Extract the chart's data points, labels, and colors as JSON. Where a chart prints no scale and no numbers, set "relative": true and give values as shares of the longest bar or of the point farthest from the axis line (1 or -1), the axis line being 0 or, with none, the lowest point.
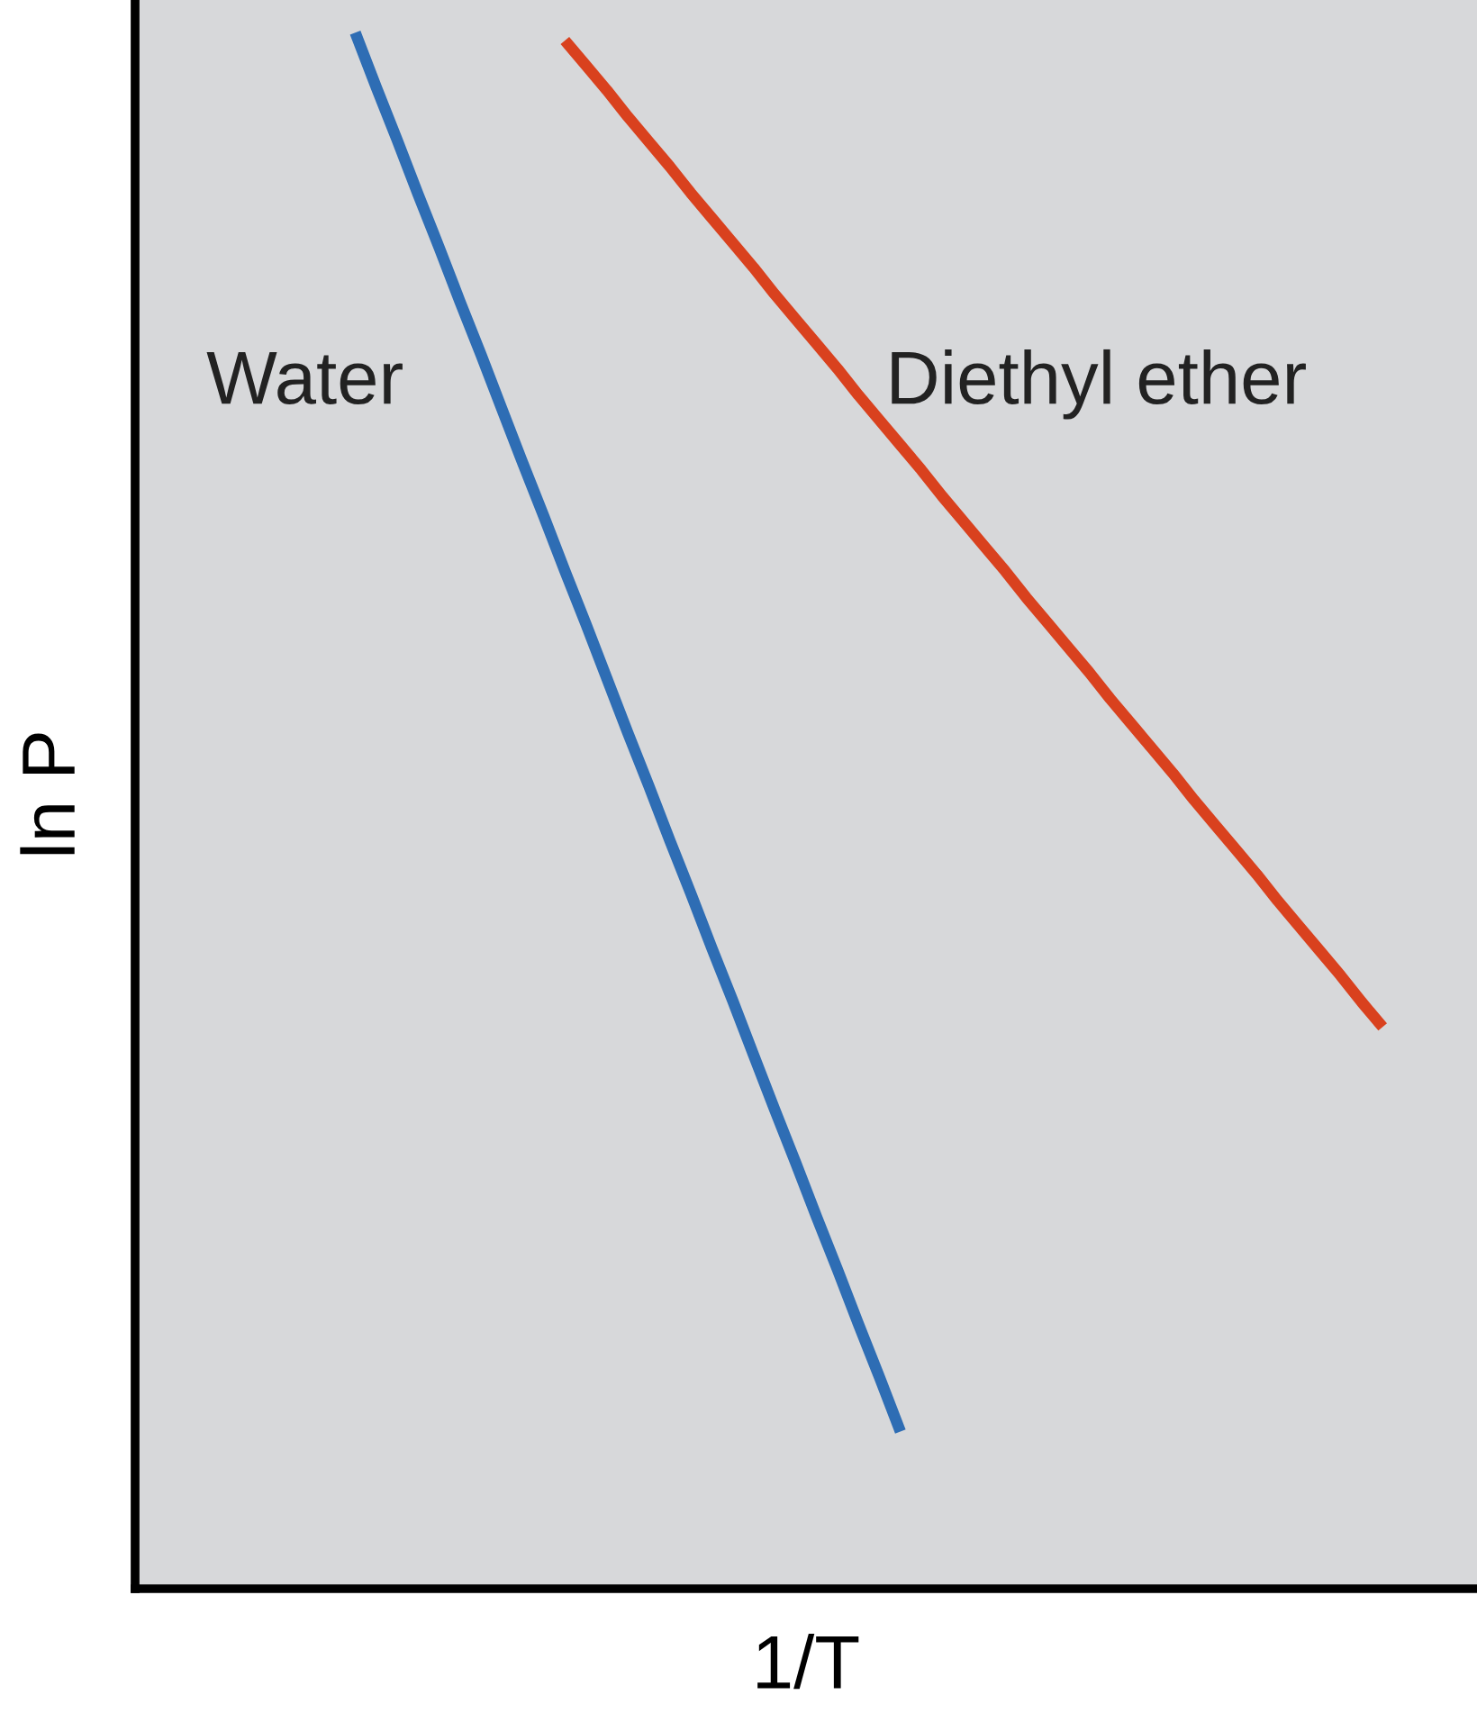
{
  "chart_data": {
    "type": "line",
    "relative": true,
    "xlabel": "1/T",
    "ylabel": "ln P",
    "legend": false,
    "marker": "none",
    "line_style": "solid",
    "categories": [
      null,
      null,
      null,
      null,
      null,
      null,
      null,
      null,
      null,
      null,
      null,
      null,
      null,
      null,
      null,
      null,
      null,
      null,
      null,
      null,
      null,
      null,
      null,
      null,
      null,
      null,
      null,
      null,
      null,
      null,
      null,
      null,
      null,
      null,
      null,
      null,
      null,
      null,
      null,
      null,
      null,
      null,
      null,
      null,
      null,
      null,
      null,
      null,
      null,
      null,
      null,
      null,
      null,
      null,
      null,
      null,
      null,
      null,
      null,
      null,
      null,
      null,
      null,
      null
    ],
    "series": [
      {
        "name": "Water",
        "color": "#2e6db4",
        "values": [
          null,
          null,
          null,
          null,
          null,
          null,
          null,
          null,
          null,
          null,
          1.0,
          0.965,
          0.931,
          0.896,
          0.862,
          0.827,
          0.793,
          0.758,
          0.723,
          0.689,
          0.654,
          0.62,
          0.585,
          0.55,
          0.516,
          0.481,
          0.447,
          0.412,
          0.378,
          0.343,
          0.308,
          0.274,
          0.239,
          0.205,
          0.17,
          0.136,
          0.101,
          null,
          null,
          null,
          null,
          null,
          null,
          null,
          null,
          null,
          null,
          null,
          null,
          null,
          null,
          null,
          null,
          null,
          null,
          null,
          null,
          null,
          null,
          null,
          null,
          null,
          null,
          null
        ]
      },
      {
        "name": "Diethyl ether",
        "color": "#d9411e",
        "values": [
          null,
          null,
          null,
          null,
          null,
          null,
          null,
          null,
          null,
          null,
          null,
          null,
          null,
          null,
          null,
          null,
          null,
          null,
          null,
          null,
          0.995,
          0.979,
          0.963,
          0.946,
          0.93,
          0.914,
          0.897,
          0.881,
          0.865,
          0.849,
          0.832,
          0.816,
          0.8,
          0.784,
          0.767,
          0.751,
          0.735,
          0.719,
          0.702,
          0.686,
          0.67,
          0.654,
          0.637,
          0.621,
          0.605,
          0.589,
          0.572,
          0.556,
          0.54,
          0.524,
          0.507,
          0.491,
          0.475,
          0.459,
          0.442,
          0.426,
          0.41,
          0.394,
          0.377,
          0.361,
          null,
          null,
          null,
          null
        ]
      }
    ]
  }
}
